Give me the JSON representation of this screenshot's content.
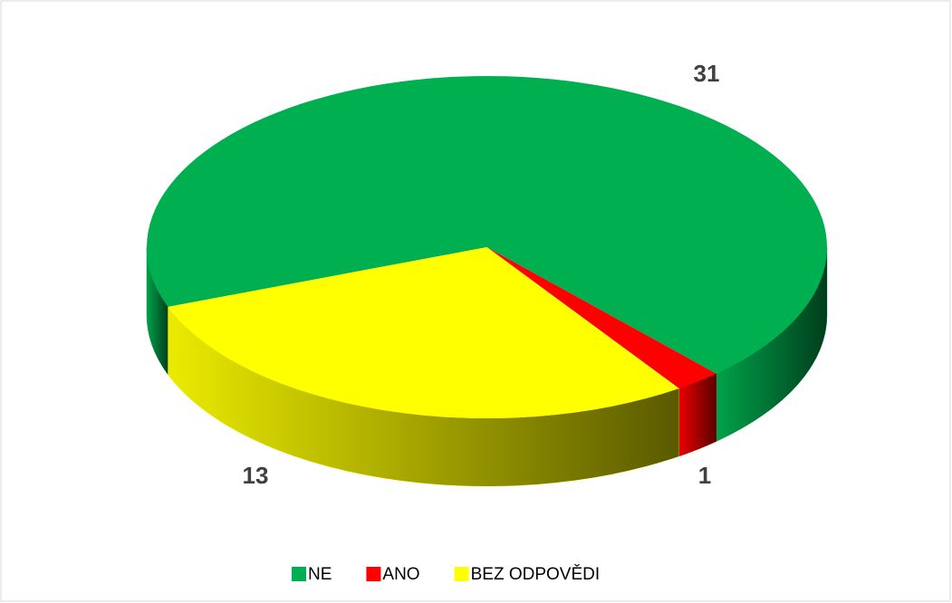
{
  "chart_data": {
    "type": "pie",
    "three_d": true,
    "categories": [
      "NE",
      "ANO",
      "BEZ ODPOVĚDI"
    ],
    "values": [
      31,
      1,
      13
    ],
    "colors": [
      "#00b050",
      "#ff0000",
      "#ffff00"
    ],
    "legend": "bottom"
  }
}
